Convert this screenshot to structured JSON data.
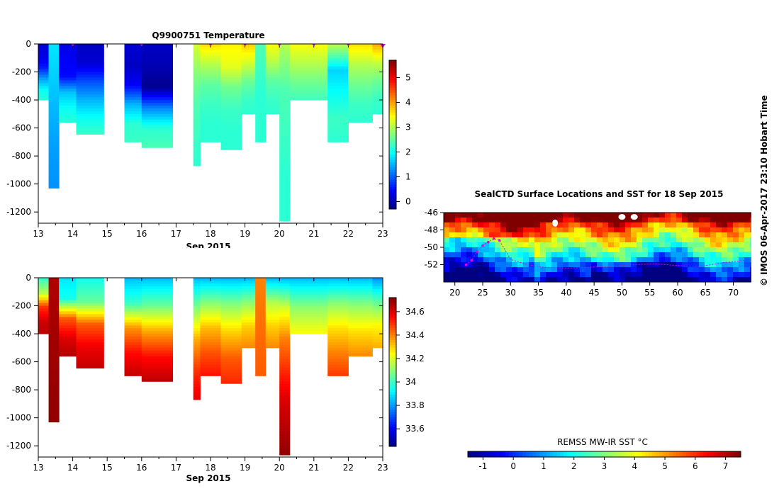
{
  "colors": {
    "accent_magenta": "#e000e0",
    "land_mask": "#ffffff"
  },
  "chart_data": [
    {
      "id": "temperature",
      "type": "heatmap",
      "title": "Q9900751  Temperature",
      "xlabel": "Sep 2015",
      "ylabel": "",
      "x_ticks": [
        "13",
        "14",
        "15",
        "16",
        "17",
        "18",
        "19",
        "20",
        "21",
        "22",
        "23"
      ],
      "y_ticks": [
        "0",
        "-200",
        "-400",
        "-600",
        "-800",
        "-1000",
        "-1200"
      ],
      "xlim": [
        13,
        23
      ],
      "ylim": [
        -1280,
        0
      ],
      "colorbar": {
        "range": [
          -0.3,
          5.7
        ],
        "ticks": [
          "0",
          "1",
          "2",
          "3",
          "4",
          "5"
        ],
        "tick_values": [
          0,
          1,
          2,
          3,
          4,
          5
        ]
      },
      "surface_marks": [
        14,
        16,
        18,
        19,
        20,
        21,
        22,
        23
      ],
      "profiles": [
        {
          "x0": 13.0,
          "x1": 13.6,
          "bottom": -400,
          "temps": [
            0.2,
            0.3,
            0.6,
            1.4,
            2.0,
            2.2
          ]
        },
        {
          "x0": 13.3,
          "x1": 13.6,
          "bottom": -1030,
          "temps": [
            1.8,
            1.6,
            1.4,
            1.3
          ]
        },
        {
          "x0": 13.6,
          "x1": 14.1,
          "bottom": -560,
          "temps": [
            0.3,
            0.4,
            0.5,
            1.6,
            2.0,
            2.2
          ]
        },
        {
          "x0": 14.1,
          "x1": 14.9,
          "bottom": -645,
          "temps": [
            0.1,
            0.2,
            0.9,
            1.5,
            2.0,
            2.3
          ]
        },
        {
          "x0": 15.5,
          "x1": 16.0,
          "bottom": -700,
          "temps": [
            0.2,
            0.1,
            0.4,
            1.5,
            2.2,
            2.3
          ]
        },
        {
          "x0": 16.0,
          "x1": 16.9,
          "bottom": -740,
          "temps": [
            0.1,
            0.0,
            -0.2,
            1.2,
            2.2,
            2.4
          ]
        },
        {
          "x0": 17.5,
          "x1": 17.7,
          "bottom": -870,
          "temps": [
            3.2,
            2.7,
            2.4,
            2.3,
            2.2
          ]
        },
        {
          "x0": 17.7,
          "x1": 18.3,
          "bottom": -700,
          "temps": [
            3.6,
            3.0,
            2.5,
            2.3,
            2.2,
            2.2
          ]
        },
        {
          "x0": 18.3,
          "x1": 18.9,
          "bottom": -755,
          "temps": [
            3.5,
            3.3,
            2.6,
            2.3,
            2.2,
            2.2
          ]
        },
        {
          "x0": 18.9,
          "x1": 19.6,
          "bottom": -500,
          "temps": [
            3.7,
            3.2,
            2.6,
            2.3,
            2.2
          ]
        },
        {
          "x0": 19.3,
          "x1": 19.6,
          "bottom": -700,
          "temps": [
            2.4,
            2.2,
            2.2
          ]
        },
        {
          "x0": 19.6,
          "x1": 20.0,
          "bottom": -500,
          "temps": [
            3.4,
            3.0,
            2.5,
            2.3,
            2.2
          ]
        },
        {
          "x0": 20.0,
          "x1": 20.3,
          "bottom": -1265,
          "temps": [
            3.0,
            2.4,
            2.3,
            2.2,
            2.2
          ]
        },
        {
          "x0": 20.3,
          "x1": 21.4,
          "bottom": -400,
          "temps": [
            3.4,
            3.0,
            2.6,
            2.3
          ]
        },
        {
          "x0": 21.4,
          "x1": 22.0,
          "bottom": -700,
          "temps": [
            3.0,
            1.7,
            2.0,
            2.3,
            2.2
          ]
        },
        {
          "x0": 22.0,
          "x1": 22.7,
          "bottom": -560,
          "temps": [
            3.6,
            3.0,
            2.6,
            2.3,
            2.2
          ]
        },
        {
          "x0": 22.7,
          "x1": 23.0,
          "bottom": -500,
          "temps": [
            3.9,
            3.1,
            2.6,
            2.3,
            2.2
          ]
        }
      ]
    },
    {
      "id": "salinity",
      "type": "heatmap",
      "title": "",
      "xlabel": "Sep 2015",
      "ylabel": "",
      "x_ticks": [
        "13",
        "14",
        "15",
        "16",
        "17",
        "18",
        "19",
        "20",
        "21",
        "22",
        "23"
      ],
      "y_ticks": [
        "0",
        "-200",
        "-400",
        "-600",
        "-800",
        "-1000",
        "-1200"
      ],
      "xlim": [
        13,
        23
      ],
      "ylim": [
        -1280,
        0
      ],
      "colorbar": {
        "range": [
          33.45,
          34.72
        ],
        "ticks": [
          "33.6",
          "33.8",
          "34",
          "34.2",
          "34.4",
          "34.6"
        ],
        "tick_values": [
          33.6,
          33.8,
          34.0,
          34.2,
          34.4,
          34.6
        ]
      },
      "profiles": [
        {
          "x0": 13.0,
          "x1": 13.6,
          "bottom": -400,
          "sals": [
            34.0,
            34.15,
            34.5,
            34.62,
            34.65
          ]
        },
        {
          "x0": 13.3,
          "x1": 13.6,
          "bottom": -1030,
          "sals": [
            34.66,
            34.68,
            34.7
          ]
        },
        {
          "x0": 13.6,
          "x1": 14.1,
          "bottom": -560,
          "sals": [
            33.9,
            33.95,
            34.45,
            34.6,
            34.66
          ]
        },
        {
          "x0": 14.1,
          "x1": 14.9,
          "bottom": -645,
          "sals": [
            33.95,
            34.05,
            34.45,
            34.58,
            34.64
          ]
        },
        {
          "x0": 15.5,
          "x1": 16.0,
          "bottom": -700,
          "sals": [
            33.85,
            34.0,
            34.38,
            34.55,
            34.64
          ]
        },
        {
          "x0": 16.0,
          "x1": 16.9,
          "bottom": -740,
          "sals": [
            33.85,
            34.05,
            34.35,
            34.55,
            34.65
          ]
        },
        {
          "x0": 17.5,
          "x1": 17.7,
          "bottom": -870,
          "sals": [
            33.85,
            34.1,
            34.35,
            34.5,
            34.6
          ]
        },
        {
          "x0": 17.7,
          "x1": 18.3,
          "bottom": -700,
          "sals": [
            33.85,
            34.1,
            34.33,
            34.46,
            34.55
          ]
        },
        {
          "x0": 18.3,
          "x1": 18.9,
          "bottom": -755,
          "sals": [
            33.85,
            34.1,
            34.3,
            34.45,
            34.52
          ]
        },
        {
          "x0": 18.9,
          "x1": 19.6,
          "bottom": -500,
          "sals": [
            33.85,
            34.1,
            34.3,
            34.4
          ]
        },
        {
          "x0": 19.3,
          "x1": 19.6,
          "bottom": -700,
          "sals": [
            34.4,
            34.45
          ]
        },
        {
          "x0": 19.6,
          "x1": 20.0,
          "bottom": -500,
          "sals": [
            33.85,
            34.15,
            34.3,
            34.4
          ]
        },
        {
          "x0": 20.0,
          "x1": 20.3,
          "bottom": -1265,
          "sals": [
            33.85,
            34.2,
            34.4,
            34.5,
            34.6,
            34.65,
            34.7
          ]
        },
        {
          "x0": 20.3,
          "x1": 21.4,
          "bottom": -400,
          "sals": [
            33.85,
            34.1,
            34.25
          ]
        },
        {
          "x0": 21.4,
          "x1": 22.0,
          "bottom": -700,
          "sals": [
            33.85,
            34.1,
            34.28,
            34.4,
            34.5
          ]
        },
        {
          "x0": 22.0,
          "x1": 22.7,
          "bottom": -560,
          "sals": [
            33.85,
            34.1,
            34.28,
            34.4
          ]
        },
        {
          "x0": 22.7,
          "x1": 23.0,
          "bottom": -500,
          "sals": [
            33.8,
            34.05,
            34.25,
            34.35
          ]
        }
      ]
    },
    {
      "id": "sst-map",
      "type": "heatmap",
      "title": "SealCTD Surface Locations and SST for 18 Sep 2015",
      "xlabel": "",
      "ylabel": "",
      "x_ticks": [
        "20",
        "25",
        "30",
        "35",
        "40",
        "45",
        "50",
        "55",
        "60",
        "65",
        "70"
      ],
      "x_tick_values": [
        20,
        25,
        30,
        35,
        40,
        45,
        50,
        55,
        60,
        65,
        70
      ],
      "y_ticks": [
        "-46",
        "-48",
        "-50",
        "-52"
      ],
      "y_tick_values": [
        -46,
        -48,
        -50,
        -52
      ],
      "xlim": [
        18,
        74
      ],
      "ylim": [
        -54,
        -46
      ],
      "colorbar": {
        "label": "REMSS MW-IR SST °C",
        "range": [
          -1.5,
          7.5
        ],
        "ticks": [
          "-1",
          "0",
          "1",
          "2",
          "3",
          "4",
          "5",
          "6",
          "7"
        ],
        "tick_values": [
          -1,
          0,
          1,
          2,
          3,
          4,
          5,
          6,
          7
        ]
      },
      "track_lon": [
        22,
        23,
        24,
        25,
        26,
        27,
        28,
        30,
        33,
        36,
        40,
        44,
        48,
        52,
        56,
        60,
        64,
        68,
        72
      ],
      "track_lat": [
        -52.0,
        -51.5,
        -50.5,
        -49.8,
        -49.4,
        -49.0,
        -49.2,
        -51.4,
        -52.0,
        -52.3,
        -52.4,
        -52.3,
        -52.2,
        -52.0,
        -51.9,
        -52.1,
        -52.2,
        -51.8,
        -51.5
      ]
    }
  ],
  "stamp": "© IMOS 06-Apr-2017 23:10 Hobart Time"
}
